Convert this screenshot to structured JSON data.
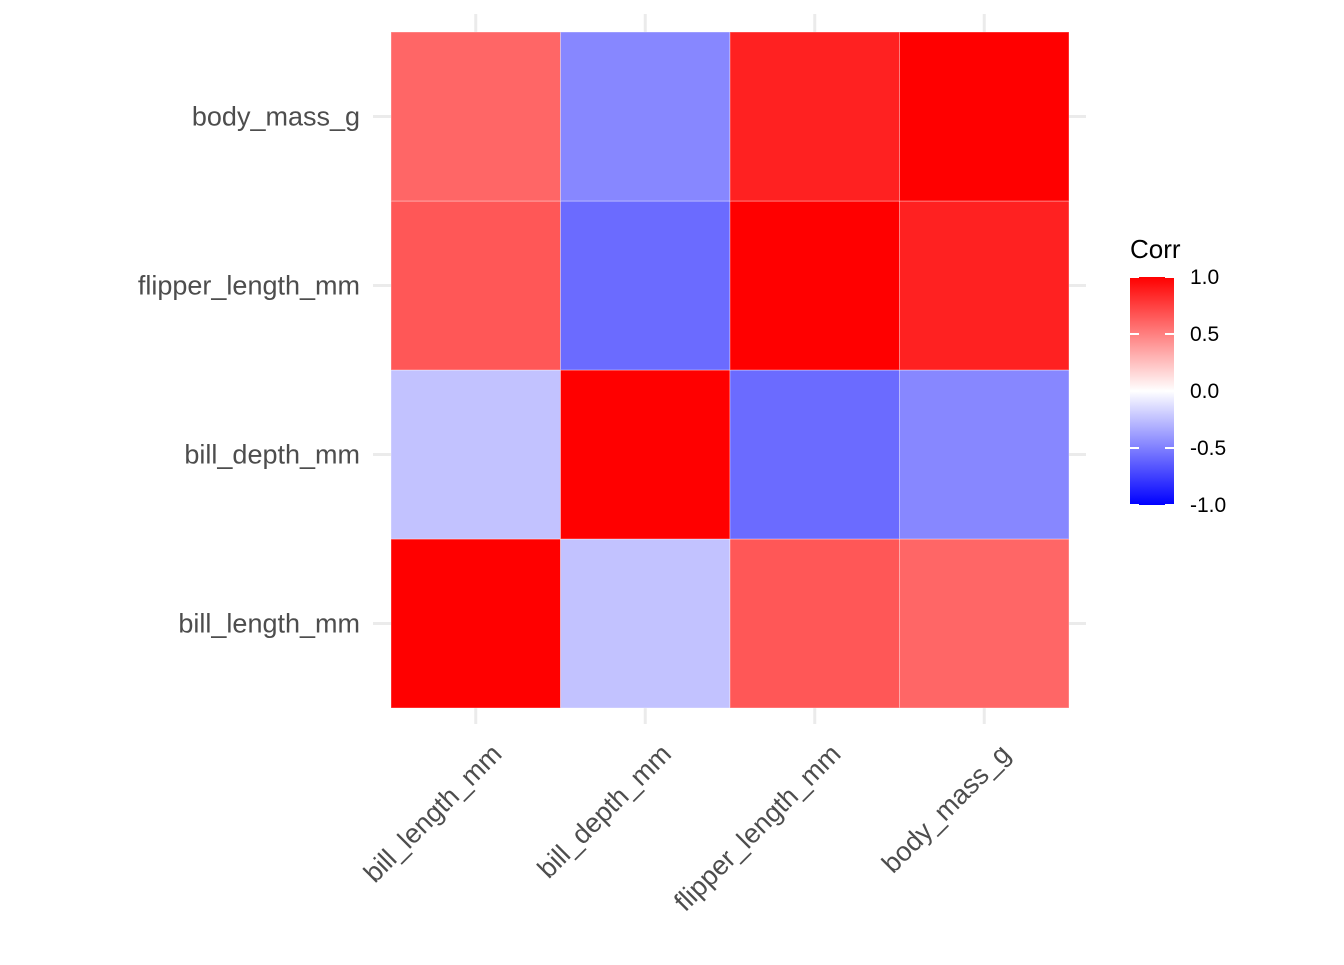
{
  "chart_data": {
    "type": "heatmap",
    "title": "",
    "xlabel": "",
    "ylabel": "",
    "x_categories": [
      "bill_length_mm",
      "bill_depth_mm",
      "flipper_length_mm",
      "body_mass_g"
    ],
    "y_categories": [
      "bill_length_mm",
      "bill_depth_mm",
      "flipper_length_mm",
      "body_mass_g"
    ],
    "values": [
      [
        1.0,
        -0.24,
        0.66,
        0.6
      ],
      [
        -0.24,
        1.0,
        -0.58,
        -0.47
      ],
      [
        0.66,
        -0.58,
        1.0,
        0.87
      ],
      [
        0.6,
        -0.47,
        0.87,
        1.0
      ]
    ],
    "color_scale": {
      "low": "#0000FF",
      "mid": "#FFFFFF",
      "high": "#FF0000",
      "limits": [
        -1,
        1
      ]
    },
    "legend": {
      "title": "Corr",
      "position": "right",
      "breaks": [
        "1.0",
        "0.5",
        "0.0",
        "-0.5",
        "-1.0"
      ]
    },
    "grid": true,
    "x_tick_rotation": 45
  }
}
